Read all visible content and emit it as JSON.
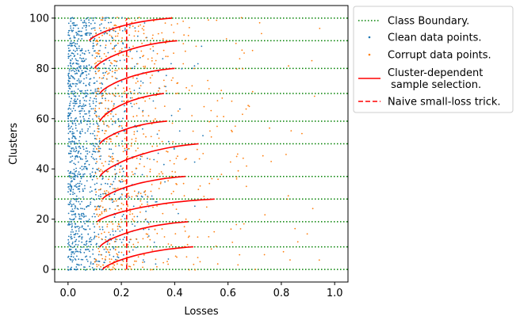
{
  "chart_data": {
    "type": "scatter",
    "xlabel": "Losses",
    "ylabel": "Clusters",
    "xlim": [
      -0.05,
      1.05
    ],
    "ylim": [
      -5,
      105
    ],
    "xticks": [
      0.0,
      0.2,
      0.4,
      0.6,
      0.8,
      1.0
    ],
    "xtick_labels": [
      "0.0",
      "0.2",
      "0.4",
      "0.6",
      "0.8",
      "1.0"
    ],
    "yticks": [
      0,
      20,
      40,
      60,
      80,
      100
    ],
    "ytick_labels": [
      "0",
      "20",
      "40",
      "60",
      "80",
      "100"
    ],
    "grid": false,
    "legend_position": "outside-top-right",
    "legend": [
      {
        "key": "boundary",
        "label": "Class Boundary."
      },
      {
        "key": "clean",
        "label": "Clean data points."
      },
      {
        "key": "corrupt",
        "label": "Corrupt data points."
      },
      {
        "key": "cluster",
        "label": "Cluster-dependent\n sample selection."
      },
      {
        "key": "naive",
        "label": "Naive small-loss trick."
      }
    ],
    "class_boundaries": [
      0,
      9,
      19,
      28,
      37,
      50,
      59,
      70,
      80,
      91,
      100
    ],
    "naive_threshold": 0.22,
    "cluster_selection_curves": [
      {
        "y_range": [
          0,
          9
        ],
        "x_range": [
          0.13,
          0.47
        ]
      },
      {
        "y_range": [
          9,
          19
        ],
        "x_range": [
          0.12,
          0.45
        ]
      },
      {
        "y_range": [
          19,
          28
        ],
        "x_range": [
          0.11,
          0.55
        ]
      },
      {
        "y_range": [
          28,
          37
        ],
        "x_range": [
          0.13,
          0.44
        ]
      },
      {
        "y_range": [
          37,
          50
        ],
        "x_range": [
          0.12,
          0.49
        ]
      },
      {
        "y_range": [
          50,
          59
        ],
        "x_range": [
          0.12,
          0.37
        ]
      },
      {
        "y_range": [
          59,
          70
        ],
        "x_range": [
          0.12,
          0.36
        ]
      },
      {
        "y_range": [
          70,
          80
        ],
        "x_range": [
          0.12,
          0.4
        ]
      },
      {
        "y_range": [
          80,
          91
        ],
        "x_range": [
          0.1,
          0.41
        ]
      },
      {
        "y_range": [
          91,
          100
        ],
        "x_range": [
          0.08,
          0.39
        ]
      }
    ],
    "series": [
      {
        "key": "clean",
        "color": "#1f77b4",
        "loss_range": [
          0.0,
          0.7
        ]
      },
      {
        "key": "corrupt",
        "color": "#ff7f0e",
        "loss_range": [
          0.1,
          0.96
        ]
      }
    ],
    "colors": {
      "boundary": "#008000",
      "clean": "#1f77b4",
      "corrupt": "#ff7f0e",
      "cluster": "#ff0000",
      "naive": "#ff0000",
      "axis": "#000000",
      "legend_frame": "#cccccc"
    }
  }
}
